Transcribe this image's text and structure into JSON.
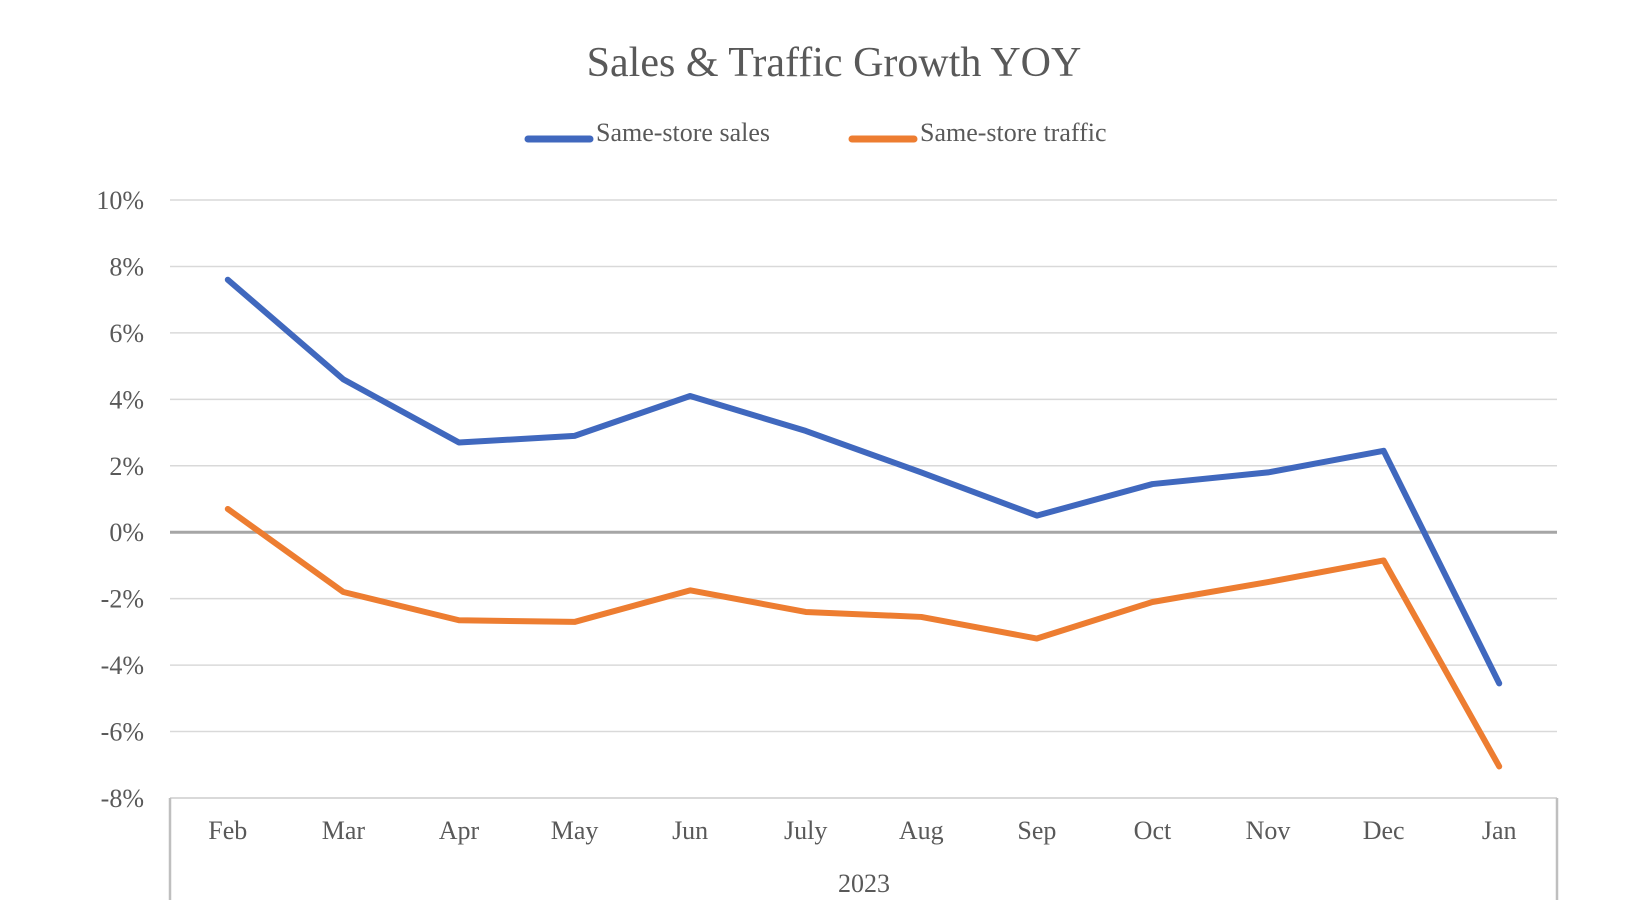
{
  "chart_data": {
    "type": "line",
    "title": "Sales & Traffic Growth YOY",
    "categories": [
      "Feb",
      "Mar",
      "Apr",
      "May",
      "Jun",
      "July",
      "Aug",
      "Sep",
      "Oct",
      "Nov",
      "Dec",
      "Jan"
    ],
    "category_group": "2023",
    "ylim": [
      -8,
      10
    ],
    "yticks": [
      "10%",
      "8%",
      "6%",
      "4%",
      "2%",
      "0%",
      "-2%",
      "-4%",
      "-6%",
      "-8%"
    ],
    "grid": true,
    "legend": "top",
    "series": [
      {
        "name": "Same-store sales",
        "color": "#4068BE",
        "values": [
          7.6,
          4.6,
          2.7,
          2.9,
          4.1,
          3.05,
          1.8,
          0.5,
          1.45,
          1.8,
          2.45,
          -4.55
        ]
      },
      {
        "name": "Same-store traffic",
        "color": "#ED7D31",
        "values": [
          0.7,
          -1.8,
          -2.65,
          -2.7,
          -1.75,
          -2.4,
          -2.55,
          -3.2,
          -2.1,
          -1.5,
          -0.85,
          -7.05
        ]
      }
    ]
  }
}
